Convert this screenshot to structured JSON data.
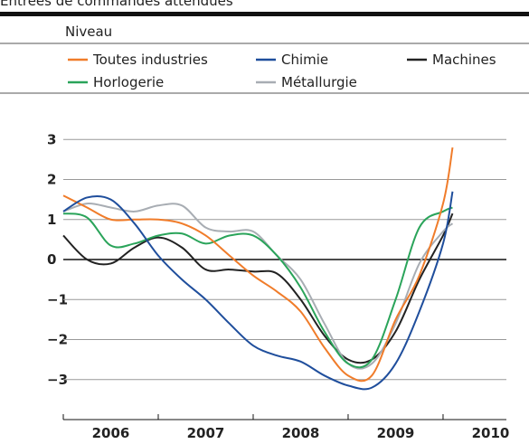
{
  "chart_data": {
    "type": "line",
    "title": "Entrées de commandes attendues",
    "legend_title": "Niveau",
    "x": [
      2006,
      2006.25,
      2006.5,
      2006.75,
      2007,
      2007.25,
      2007.5,
      2007.75,
      2008,
      2008.25,
      2008.5,
      2008.75,
      2009,
      2009.25,
      2009.5,
      2009.75,
      2010,
      2010.1
    ],
    "series": [
      {
        "name": "Toutes industries",
        "color": "#f07c2a",
        "values": [
          1.6,
          1.3,
          1.0,
          1.0,
          1.0,
          0.9,
          0.6,
          0.1,
          -0.4,
          -0.8,
          -1.3,
          -2.2,
          -2.9,
          -2.9,
          -1.5,
          -0.4,
          1.4,
          2.8
        ]
      },
      {
        "name": "Chimie",
        "color": "#1f4e9c",
        "values": [
          1.2,
          1.55,
          1.5,
          0.9,
          0.1,
          -0.5,
          -1.0,
          -1.6,
          -2.15,
          -2.4,
          -2.55,
          -2.9,
          -3.15,
          -3.2,
          -2.6,
          -1.3,
          0.4,
          1.7
        ]
      },
      {
        "name": "Machines",
        "color": "#222222",
        "values": [
          0.6,
          0.0,
          -0.1,
          0.3,
          0.55,
          0.3,
          -0.25,
          -0.25,
          -0.3,
          -0.35,
          -1.0,
          -1.9,
          -2.5,
          -2.5,
          -1.8,
          -0.5,
          0.6,
          1.15
        ]
      },
      {
        "name": "Horlogerie",
        "color": "#2aa45a",
        "values": [
          1.15,
          1.05,
          0.35,
          0.4,
          0.6,
          0.65,
          0.4,
          0.6,
          0.6,
          0.1,
          -0.7,
          -1.8,
          -2.6,
          -2.5,
          -1.0,
          0.8,
          1.2,
          1.3
        ]
      },
      {
        "name": "Métallurgie",
        "color": "#a8adb3",
        "values": [
          1.2,
          1.4,
          1.3,
          1.2,
          1.35,
          1.35,
          0.8,
          0.7,
          0.7,
          0.1,
          -0.5,
          -1.6,
          -2.6,
          -2.6,
          -1.6,
          -0.1,
          0.7,
          0.9
        ]
      }
    ],
    "xlim": [
      2006,
      2010.667
    ],
    "xticks": [
      2006,
      2007,
      2008,
      2009,
      2010
    ],
    "ylim": [
      -4,
      3.3
    ],
    "yticks": [
      {
        "value": -3,
        "label": "−3"
      },
      {
        "value": -2,
        "label": "−2"
      },
      {
        "value": -1,
        "label": "−1"
      },
      0,
      1,
      2,
      3
    ],
    "grid": true
  }
}
